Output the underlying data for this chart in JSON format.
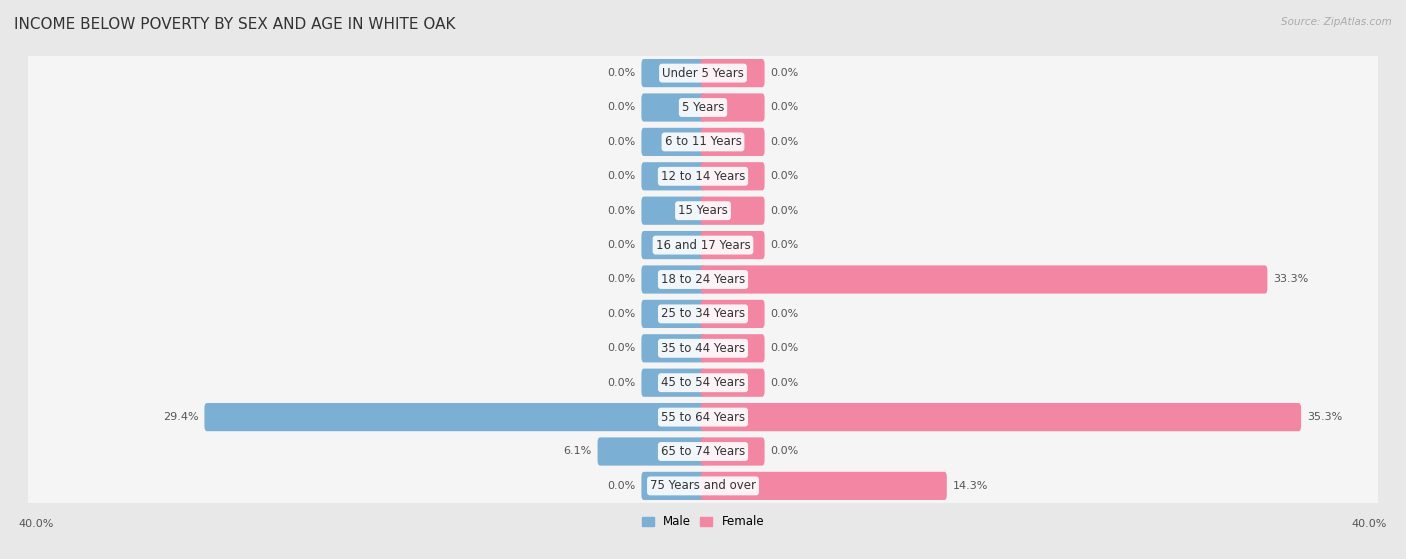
{
  "title": "INCOME BELOW POVERTY BY SEX AND AGE IN WHITE OAK",
  "source": "Source: ZipAtlas.com",
  "categories": [
    "Under 5 Years",
    "5 Years",
    "6 to 11 Years",
    "12 to 14 Years",
    "15 Years",
    "16 and 17 Years",
    "18 to 24 Years",
    "25 to 34 Years",
    "35 to 44 Years",
    "45 to 54 Years",
    "55 to 64 Years",
    "65 to 74 Years",
    "75 Years and over"
  ],
  "male_values": [
    0.0,
    0.0,
    0.0,
    0.0,
    0.0,
    0.0,
    0.0,
    0.0,
    0.0,
    0.0,
    29.4,
    6.1,
    0.0
  ],
  "female_values": [
    0.0,
    0.0,
    0.0,
    0.0,
    0.0,
    0.0,
    33.3,
    0.0,
    0.0,
    0.0,
    35.3,
    0.0,
    14.3
  ],
  "male_color": "#7bafd4",
  "female_color": "#f286a3",
  "male_label": "Male",
  "female_label": "Female",
  "axis_max": 40.0,
  "background_color": "#e8e8e8",
  "row_bg_color": "#f5f5f5",
  "title_fontsize": 11,
  "label_fontsize": 8.5,
  "value_fontsize": 8,
  "source_fontsize": 7.5,
  "stub_size": 3.5
}
